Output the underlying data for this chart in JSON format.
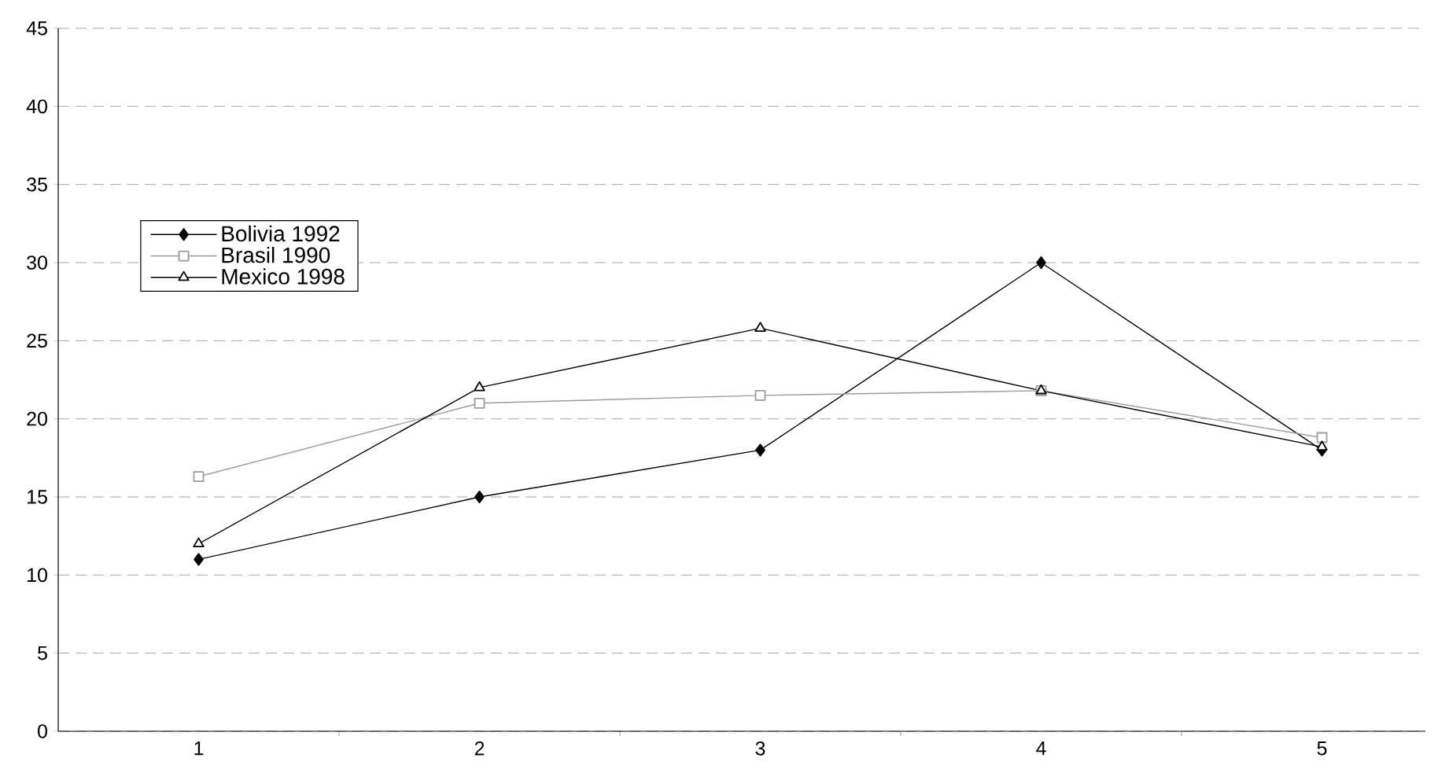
{
  "chart_data": {
    "type": "line",
    "categories": [
      "1",
      "2",
      "3",
      "4",
      "5"
    ],
    "series": [
      {
        "name": "Bolivia 1992",
        "color": "#000000",
        "marker": "diamond",
        "values": [
          11,
          15,
          18,
          30,
          18
        ]
      },
      {
        "name": "Brasil 1990",
        "color": "#9c9c9c",
        "marker": "square",
        "values": [
          16.3,
          21,
          21.5,
          21.8,
          18.8
        ]
      },
      {
        "name": "Mexico 1998",
        "color": "#000000",
        "marker": "triangle",
        "values": [
          12,
          22,
          25.8,
          21.8,
          18.2
        ]
      }
    ],
    "ylim": [
      0,
      45
    ],
    "yticks": [
      0,
      5,
      10,
      15,
      20,
      25,
      30,
      35,
      40,
      45
    ],
    "grid": "y",
    "legend": "top left"
  }
}
